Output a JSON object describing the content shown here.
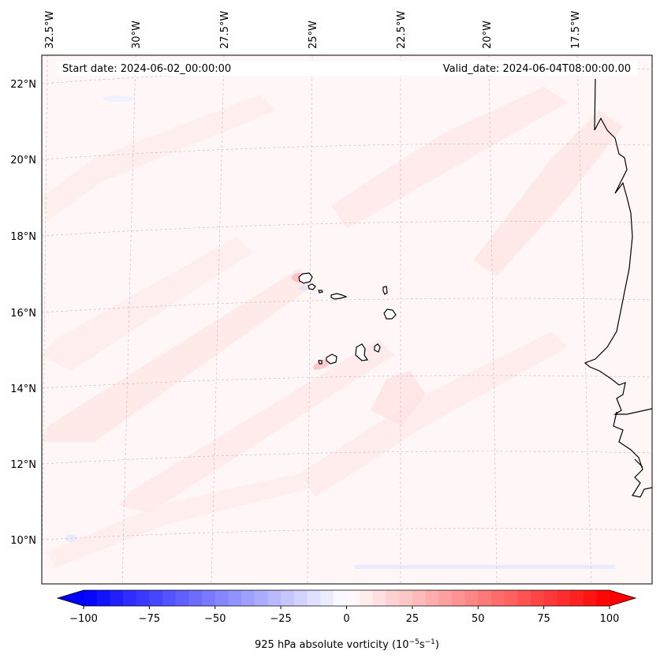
{
  "header": {
    "start_date": "Start date: 2024-06-02_00:00:00",
    "valid_date": "Valid_date: 2024-06-04T08:00:00.00"
  },
  "map": {
    "lon_labels": [
      "32.5°W",
      "30°W",
      "27.5°W",
      "25°W",
      "22.5°W",
      "20°W",
      "17.5°W"
    ],
    "lat_labels": [
      "22°N",
      "20°N",
      "18°N",
      "16°N",
      "14°N",
      "12°N",
      "10°N"
    ],
    "islands": [
      "santo-antao",
      "sao-vicente",
      "sao-nicolau",
      "sal",
      "boa-vista",
      "fogo",
      "brava",
      "santiago",
      "maio"
    ]
  },
  "colorbar": {
    "ticks": [
      "−100",
      "−75",
      "−50",
      "−25",
      "0",
      "25",
      "50",
      "75",
      "100"
    ],
    "levels": [
      -100,
      -95,
      -90,
      -85,
      -80,
      -75,
      -70,
      -65,
      -60,
      -55,
      -50,
      -45,
      -40,
      -35,
      -30,
      -25,
      -20,
      -15,
      -10,
      -5,
      0,
      5,
      10,
      15,
      20,
      25,
      30,
      35,
      40,
      45,
      50,
      55,
      60,
      65,
      70,
      75,
      80,
      85,
      90,
      95,
      100
    ],
    "label_text": "925 hPa absolute vorticity (10",
    "label_exp1": "−5",
    "label_mid": "s",
    "label_exp2": "−1",
    "label_end": ")",
    "color_neg": "#0000ff",
    "color_pos": "#ff0000"
  }
}
